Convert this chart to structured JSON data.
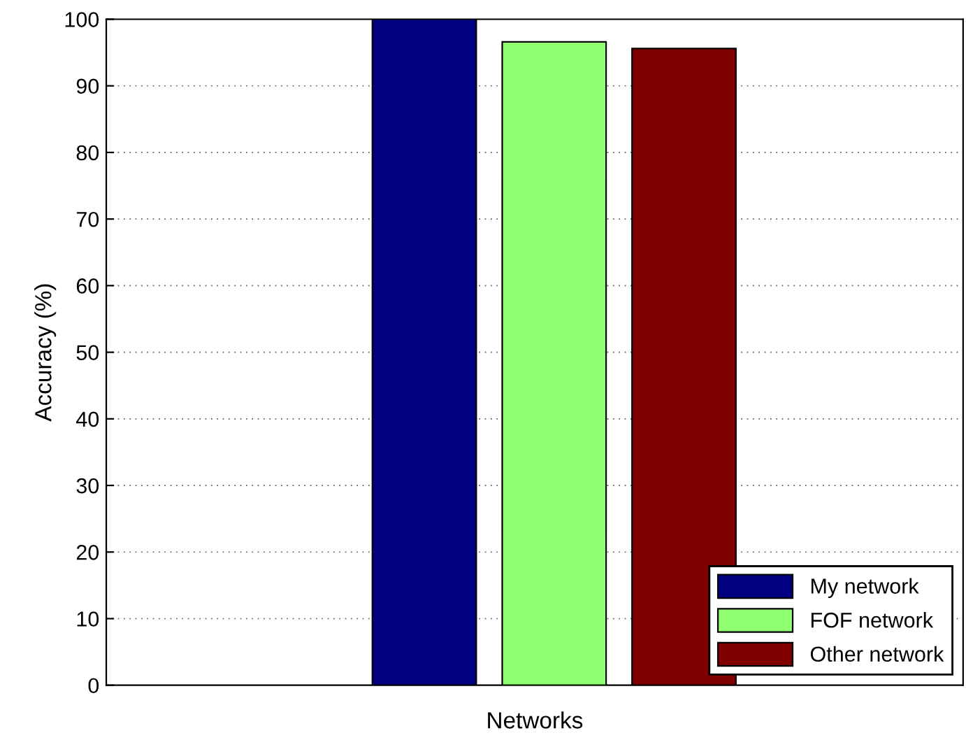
{
  "chart_data": {
    "type": "bar",
    "xlabel": "Networks",
    "ylabel": "Accuracy (%)",
    "categories": [
      null
    ],
    "ylim": [
      0,
      100
    ],
    "yticks": [
      0,
      10,
      20,
      30,
      40,
      50,
      60,
      70,
      80,
      90,
      100
    ],
    "grid": "y",
    "legend": "bottom right",
    "series": [
      {
        "name": "My network",
        "color": "#000080",
        "values": [
          100
        ]
      },
      {
        "name": "FOF network",
        "color": "#90ff70",
        "values": [
          96.6
        ]
      },
      {
        "name": "Other network",
        "color": "#800000",
        "values": [
          95.6
        ]
      }
    ]
  }
}
